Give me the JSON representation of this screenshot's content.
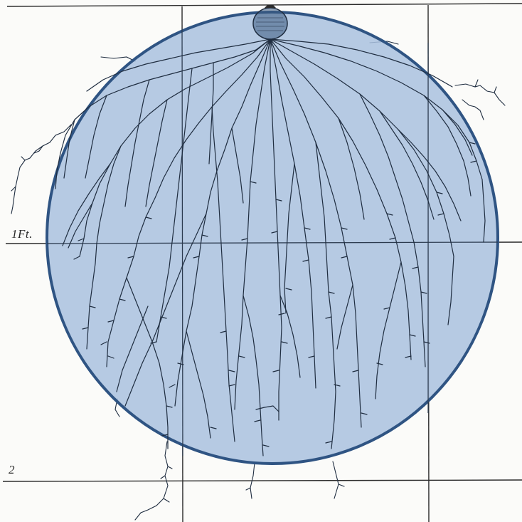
{
  "figure": {
    "depth_labels": {
      "one_foot": "1Ft.",
      "two": "2"
    },
    "colors": {
      "background": "#fbfbf9",
      "grid": "#2b2b2b",
      "root": "#1f2d40",
      "circle_fill": "#a9c1df",
      "circle_stroke": "#2f5483",
      "bulb_fill": "#3b5a80"
    },
    "overlay": {
      "shape": "circle",
      "opacity": 0.85
    }
  }
}
